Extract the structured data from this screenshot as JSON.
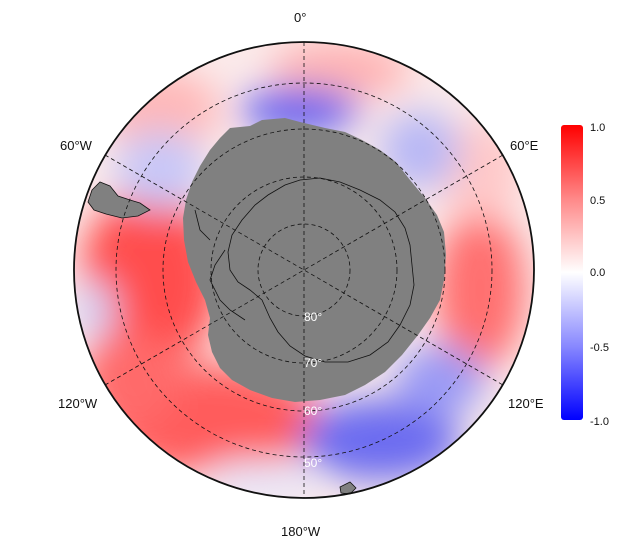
{
  "map": {
    "projection": "south-polar stereographic",
    "longitude_labels": {
      "top": "0°",
      "upper_left": "60°W",
      "upper_right": "60°E",
      "lower_left": "120°W",
      "lower_right": "120°E",
      "bottom": "180°W"
    },
    "latitude_labels": {
      "lat80": "80°",
      "lat70": "70°",
      "lat60": "60°",
      "lat50": "50°"
    },
    "land_color": "#808080",
    "grid_style": "dashed"
  },
  "colorbar": {
    "range": [
      -1.0,
      1.0
    ],
    "tick_labels": [
      "1.0",
      "0.5",
      "0.0",
      "-0.5",
      "-1.0"
    ],
    "low_color": "#0000ff",
    "mid_color": "#ffffff",
    "high_color": "#ff0000"
  }
}
